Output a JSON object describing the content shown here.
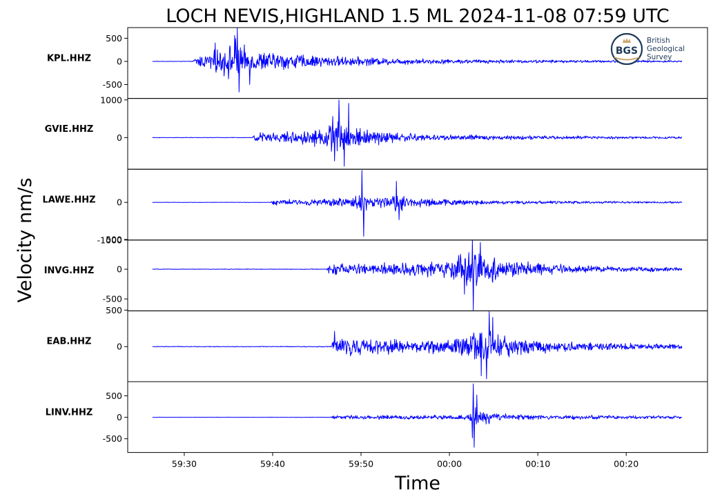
{
  "title": "LOCH NEVIS,HIGHLAND 1.5 ML   2024-11-08 07:59 UTC",
  "xlabel": "Time",
  "ylabel": "Velocity nm/s",
  "logo": {
    "badge": "BGS",
    "lines": [
      "British",
      "Geological",
      "Survey"
    ],
    "ring_color": "#1f3a5a",
    "accent_color": "#c8a46a"
  },
  "colors": {
    "trace": "#0000ff",
    "axes": "#000000"
  },
  "chart_data": {
    "type": "line",
    "grid": false,
    "x_axis": {
      "unit": "seconds relative to 07:59:00 UTC",
      "range": [
        23.6,
        89.2
      ],
      "ticks": [
        {
          "value": 30,
          "label": "59:30"
        },
        {
          "value": 40,
          "label": "59:40"
        },
        {
          "value": 50,
          "label": "59:50"
        },
        {
          "value": 60,
          "label": "00:00"
        },
        {
          "value": 70,
          "label": "00:10"
        },
        {
          "value": 80,
          "label": "00:20"
        }
      ]
    },
    "traces": [
      {
        "station": "KPL.HHZ",
        "ylim": [
          -800,
          730
        ],
        "yticks": [
          {
            "value": 500,
            "label": "500"
          },
          {
            "value": 0,
            "label": "0"
          },
          {
            "value": -500,
            "label": "-500"
          }
        ],
        "time_start": 26.4,
        "time_end": 86.3,
        "envelope": [
          [
            26.4,
            6
          ],
          [
            31.0,
            8
          ],
          [
            31.3,
            150
          ],
          [
            32.5,
            230
          ],
          [
            34.0,
            330
          ],
          [
            35.5,
            500
          ],
          [
            36.0,
            720
          ],
          [
            36.5,
            420
          ],
          [
            38.0,
            320
          ],
          [
            40.0,
            260
          ],
          [
            45.0,
            170
          ],
          [
            50.0,
            120
          ],
          [
            55.0,
            90
          ],
          [
            60.0,
            65
          ],
          [
            70.0,
            45
          ],
          [
            80.0,
            32
          ],
          [
            86.3,
            25
          ]
        ],
        "peaks": [
          [
            36.0,
            720
          ],
          [
            36.2,
            -660
          ],
          [
            35.7,
            560
          ],
          [
            37.4,
            -500
          ],
          [
            33.5,
            400
          ]
        ]
      },
      {
        "station": "GVIE.HHZ",
        "ylim": [
          -840,
          1040
        ],
        "yticks": [
          {
            "value": 1000,
            "label": "1000"
          },
          {
            "value": 0,
            "label": "0"
          }
        ],
        "time_start": 26.4,
        "time_end": 86.3,
        "envelope": [
          [
            26.4,
            8
          ],
          [
            37.7,
            10
          ],
          [
            38.0,
            170
          ],
          [
            40.0,
            190
          ],
          [
            43.0,
            220
          ],
          [
            46.0,
            330
          ],
          [
            47.5,
            720
          ],
          [
            48.5,
            500
          ],
          [
            50.0,
            330
          ],
          [
            53.0,
            200
          ],
          [
            58.0,
            110
          ],
          [
            65.0,
            80
          ],
          [
            75.0,
            55
          ],
          [
            86.3,
            40
          ]
        ],
        "peaks": [
          [
            47.5,
            1000
          ],
          [
            48.1,
            -760
          ],
          [
            47.0,
            -620
          ],
          [
            48.6,
            910
          ],
          [
            46.8,
            560
          ]
        ]
      },
      {
        "station": "LAWE.HHZ",
        "ylim": [
          -1000,
          880
        ],
        "yticks": [
          {
            "value": 0,
            "label": "0"
          },
          {
            "value": -1000,
            "label": "-1000"
          }
        ],
        "time_start": 26.4,
        "time_end": 86.3,
        "envelope": [
          [
            26.4,
            6
          ],
          [
            39.8,
            8
          ],
          [
            40.0,
            90
          ],
          [
            45.0,
            110
          ],
          [
            49.0,
            170
          ],
          [
            50.0,
            420
          ],
          [
            51.0,
            200
          ],
          [
            53.5,
            190
          ],
          [
            54.0,
            420
          ],
          [
            55.5,
            210
          ],
          [
            58.0,
            130
          ],
          [
            65.0,
            70
          ],
          [
            75.0,
            45
          ],
          [
            86.3,
            30
          ]
        ],
        "peaks": [
          [
            50.1,
            850
          ],
          [
            50.3,
            -900
          ],
          [
            54.0,
            560
          ],
          [
            54.3,
            -460
          ]
        ]
      },
      {
        "station": "INVG.HHZ",
        "ylim": [
          -700,
          490
        ],
        "yticks": [
          {
            "value": 500,
            "label": "500"
          },
          {
            "value": 0,
            "label": "0"
          },
          {
            "value": -500,
            "label": "-500"
          }
        ],
        "time_start": 26.4,
        "time_end": 86.3,
        "envelope": [
          [
            26.4,
            6
          ],
          [
            46.1,
            8
          ],
          [
            46.3,
            110
          ],
          [
            50.0,
            130
          ],
          [
            55.0,
            140
          ],
          [
            59.5,
            190
          ],
          [
            61.5,
            330
          ],
          [
            62.5,
            420
          ],
          [
            64.0,
            360
          ],
          [
            66.0,
            220
          ],
          [
            70.0,
            130
          ],
          [
            75.0,
            75
          ],
          [
            86.3,
            45
          ]
        ],
        "peaks": [
          [
            62.7,
            -690
          ],
          [
            62.6,
            490
          ],
          [
            63.5,
            450
          ],
          [
            61.7,
            -420
          ]
        ]
      },
      {
        "station": "EAB.HHZ",
        "ylim": [
          -480,
          490
        ],
        "yticks": [
          {
            "value": 500,
            "label": "500"
          },
          {
            "value": 0,
            "label": "0"
          }
        ],
        "time_start": 26.4,
        "time_end": 86.3,
        "envelope": [
          [
            26.4,
            6
          ],
          [
            46.6,
            8
          ],
          [
            46.8,
            170
          ],
          [
            49.0,
            150
          ],
          [
            53.0,
            130
          ],
          [
            57.0,
            120
          ],
          [
            60.0,
            140
          ],
          [
            62.0,
            230
          ],
          [
            64.0,
            340
          ],
          [
            65.0,
            260
          ],
          [
            67.0,
            180
          ],
          [
            70.0,
            120
          ],
          [
            75.0,
            80
          ],
          [
            86.3,
            45
          ]
        ],
        "peaks": [
          [
            64.5,
            480
          ],
          [
            64.2,
            -440
          ],
          [
            63.6,
            -400
          ],
          [
            64.9,
            400
          ],
          [
            47.0,
            210
          ]
        ]
      },
      {
        "station": "LINV.HHZ",
        "ylim": [
          -820,
          830
        ],
        "yticks": [
          {
            "value": 500,
            "label": "500"
          },
          {
            "value": 0,
            "label": "0"
          },
          {
            "value": -500,
            "label": "-500"
          }
        ],
        "time_start": 26.4,
        "time_end": 86.3,
        "envelope": [
          [
            26.4,
            5
          ],
          [
            46.5,
            6
          ],
          [
            46.7,
            70
          ],
          [
            50.0,
            65
          ],
          [
            55.0,
            60
          ],
          [
            60.0,
            65
          ],
          [
            62.3,
            90
          ],
          [
            62.7,
            420
          ],
          [
            63.5,
            260
          ],
          [
            65.0,
            140
          ],
          [
            67.0,
            90
          ],
          [
            72.0,
            65
          ],
          [
            80.0,
            55
          ],
          [
            86.3,
            45
          ]
        ],
        "peaks": [
          [
            62.7,
            780
          ],
          [
            62.8,
            -700
          ],
          [
            63.1,
            520
          ],
          [
            62.6,
            -480
          ]
        ]
      }
    ]
  }
}
